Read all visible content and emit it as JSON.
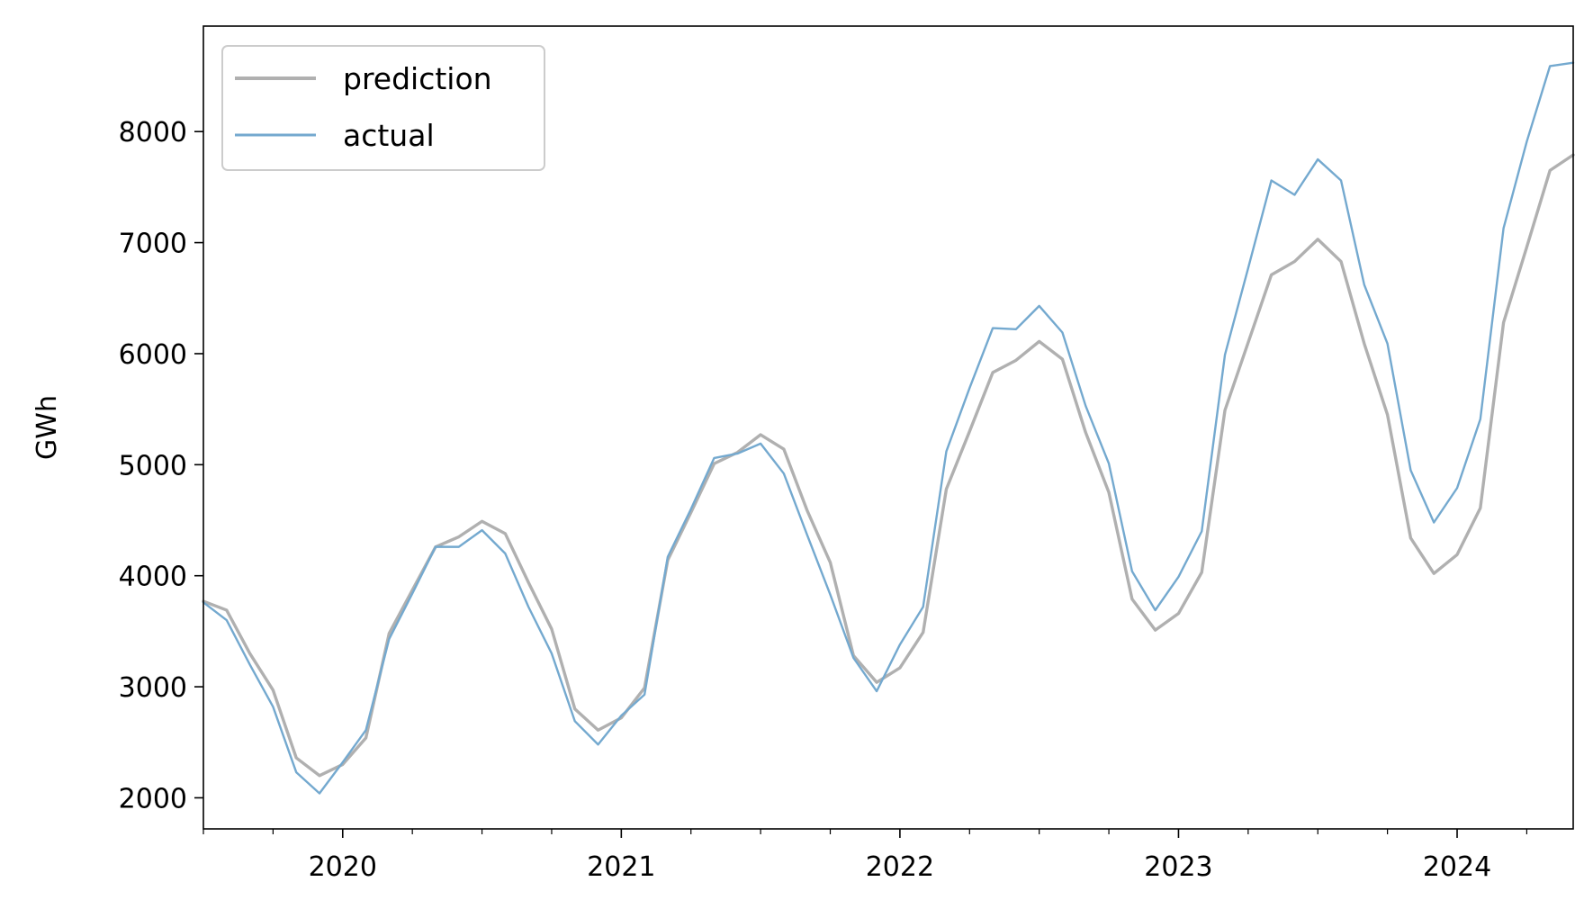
{
  "chart_data": {
    "type": "line",
    "title": "",
    "xlabel": "",
    "ylabel": "GWh",
    "xlim": [
      "2019-07",
      "2024-06"
    ],
    "ylim": [
      1720,
      8950
    ],
    "yticks": [
      2000,
      3000,
      4000,
      5000,
      6000,
      7000,
      8000
    ],
    "xticks": [
      "2020",
      "2021",
      "2022",
      "2023",
      "2024"
    ],
    "x_minor_ticks": "quarterly",
    "grid": false,
    "legend": "top-left",
    "x": [
      "2019-07",
      "2019-08",
      "2019-09",
      "2019-10",
      "2019-11",
      "2019-12",
      "2020-01",
      "2020-02",
      "2020-03",
      "2020-04",
      "2020-05",
      "2020-06",
      "2020-07",
      "2020-08",
      "2020-09",
      "2020-10",
      "2020-11",
      "2020-12",
      "2021-01",
      "2021-02",
      "2021-03",
      "2021-04",
      "2021-05",
      "2021-06",
      "2021-07",
      "2021-08",
      "2021-09",
      "2021-10",
      "2021-11",
      "2021-12",
      "2022-01",
      "2022-02",
      "2022-03",
      "2022-04",
      "2022-05",
      "2022-06",
      "2022-07",
      "2022-08",
      "2022-09",
      "2022-10",
      "2022-11",
      "2022-12",
      "2023-01",
      "2023-02",
      "2023-03",
      "2023-04",
      "2023-05",
      "2023-06",
      "2023-07",
      "2023-08",
      "2023-09",
      "2023-10",
      "2023-11",
      "2023-12",
      "2024-01",
      "2024-02",
      "2024-03",
      "2024-04",
      "2024-05",
      "2024-06"
    ],
    "series": [
      {
        "name": "prediction",
        "color": "#b0b0b0",
        "values": [
          3770,
          3690,
          3300,
          2970,
          2360,
          2200,
          2300,
          2540,
          3480,
          3870,
          4260,
          4350,
          4490,
          4380,
          3940,
          3520,
          2800,
          2610,
          2720,
          2990,
          4140,
          4570,
          5010,
          5110,
          5270,
          5140,
          4590,
          4120,
          3280,
          3040,
          3170,
          3490,
          4780,
          5300,
          5830,
          5940,
          6110,
          5950,
          5290,
          4750,
          3790,
          3510,
          3660,
          4030,
          5490,
          6100,
          6710,
          6830,
          7030,
          6830,
          6090,
          5450,
          4340,
          4020,
          4190,
          4610,
          6280,
          6960,
          7650,
          7790
        ]
      },
      {
        "name": "actual",
        "color": "#74a9cf",
        "values": [
          3760,
          3600,
          3200,
          2820,
          2230,
          2040,
          2320,
          2610,
          3430,
          3840,
          4260,
          4260,
          4410,
          4200,
          3720,
          3300,
          2690,
          2480,
          2740,
          2930,
          4170,
          4600,
          5060,
          5100,
          5190,
          4920,
          4370,
          3830,
          3260,
          2960,
          3380,
          3720,
          5120,
          5690,
          6230,
          6220,
          6430,
          6190,
          5530,
          5010,
          4040,
          3690,
          3990,
          4400,
          5990,
          6770,
          7560,
          7430,
          7750,
          7560,
          6620,
          6090,
          4950,
          4480,
          4790,
          5410,
          7130,
          7910,
          8590,
          8620
        ]
      }
    ]
  }
}
